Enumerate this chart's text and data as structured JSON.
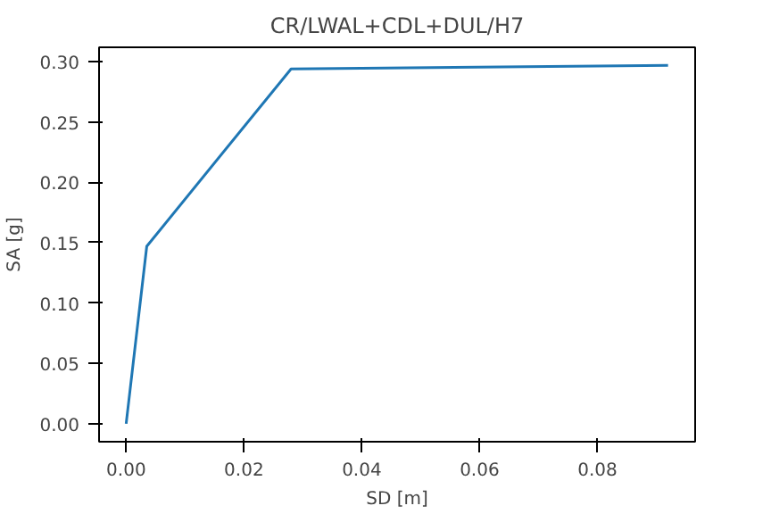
{
  "chart_data": {
    "type": "line",
    "title": "CR/LWAL+CDL+DUL/H7",
    "xlabel": "SD [m]",
    "ylabel": "SA [g]",
    "x": [
      0,
      0.0035,
      0.028,
      0.092
    ],
    "series": [
      {
        "color": "#1f77b4",
        "values": [
          0,
          0.147,
          0.294,
          0.297
        ]
      }
    ],
    "xlim": [
      -0.0046,
      0.0966
    ],
    "ylim": [
      -0.0149,
      0.3119
    ],
    "xticks": [
      {
        "value": 0,
        "label": "0.00"
      },
      0.02,
      0.04,
      0.06,
      0.08
    ],
    "yticks": [
      {
        "value": 0,
        "label": "0.00"
      },
      0.05,
      {
        "value": 0.1,
        "label": "0.10"
      },
      0.15,
      {
        "value": 0.2,
        "label": "0.20"
      },
      0.25,
      {
        "value": 0.3,
        "label": "0.30"
      }
    ],
    "grid": false
  }
}
